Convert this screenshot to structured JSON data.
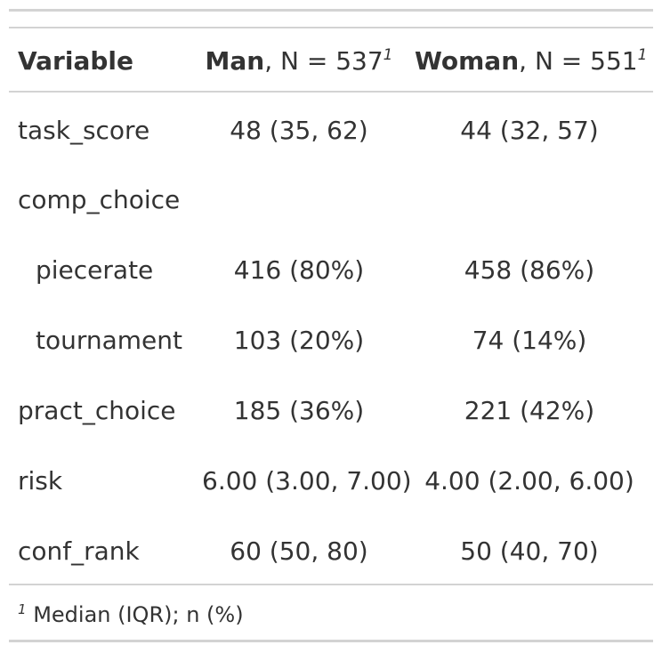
{
  "header": {
    "variable": "Variable",
    "man_label": "Man",
    "man_n": ", N = 537",
    "woman_label": "Woman",
    "woman_n": ", N = 551",
    "footnote_mark": "1"
  },
  "rows": [
    {
      "label": "task_score",
      "man": "48 (35, 62)",
      "woman": "44 (32, 57)"
    },
    {
      "label": "comp_choice",
      "man": "",
      "woman": ""
    },
    {
      "label": "piecerate",
      "man": "416 (80%)",
      "woman": "458 (86%)"
    },
    {
      "label": "tournament",
      "man": "103 (20%)",
      "woman": "74 (14%)"
    },
    {
      "label": "pract_choice",
      "man": "185 (36%)",
      "woman": "221 (42%)"
    },
    {
      "label": "risk",
      "man": "6.00 (3.00, 7.00)",
      "woman": "4.00 (2.00, 6.00)"
    },
    {
      "label": "conf_rank",
      "man": "60 (50, 80)",
      "woman": "50 (40, 70)"
    }
  ],
  "footnote": {
    "mark": "1",
    "text": "Median (IQR); n (%)"
  }
}
